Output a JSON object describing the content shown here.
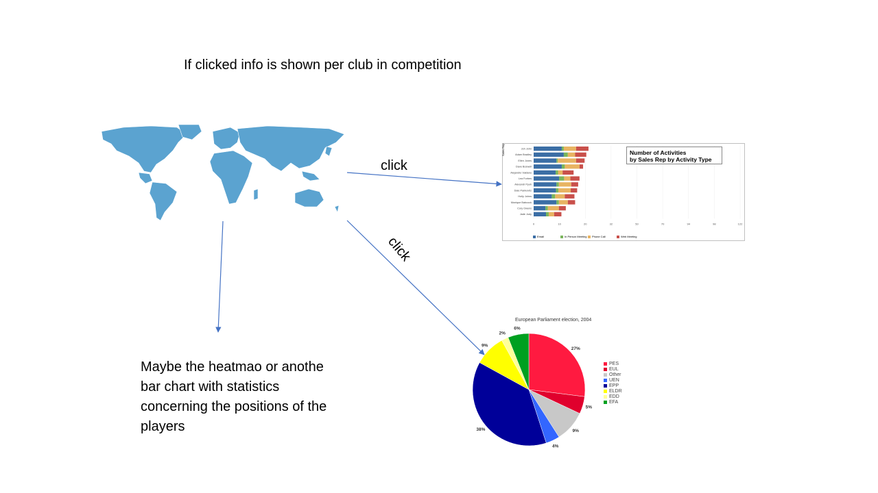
{
  "headline": "If clicked info is shown per club in competition",
  "note": "Maybe the heatmao or anothe bar chart with statistics concerning the positions of the players",
  "clicks": [
    "click",
    "click"
  ],
  "colors": {
    "map": "#5ba3d0",
    "arrow": "#4472c4"
  },
  "chart_data": [
    {
      "type": "bar",
      "stacked": true,
      "orientation": "horizontal",
      "title": "Number of Activities by Sales Rep by Activity Type",
      "title_lines": [
        "Number of Activities",
        "by Sales Rep by Activity Type"
      ],
      "ylabel": "Sales Rep",
      "categories": [
        "Joh John",
        "Adam Bradley",
        "Ellen Jones",
        "Dave Boswell",
        "Alejandro Valdano",
        "Lea Forbes",
        "Alexandr Pyuh",
        "Dale Pankovitz",
        "Holly Johns",
        "Monique Babcock",
        "Cory Owens",
        "Jade Judy"
      ],
      "xlim": [
        0,
        122
      ],
      "xticks": [
        "0",
        "10",
        "20",
        "32",
        "50",
        "70",
        "94",
        "98",
        "122"
      ],
      "legend": "bottom",
      "series": [
        {
          "name": "Email",
          "color": "#3b6ea5",
          "values": [
            16.6,
            17.8,
            13.5,
            16.6,
            13,
            15,
            13.5,
            13.2,
            10.7,
            13.5,
            7,
            7.3
          ]
        },
        {
          "name": "In Person Meeting",
          "color": "#7ab55c",
          "values": [
            1.2,
            2.4,
            0.8,
            1.8,
            1.4,
            3,
            1.4,
            1.4,
            2,
            1.4,
            1.4,
            1.6
          ]
        },
        {
          "name": "Phone Call",
          "color": "#e8b462",
          "values": [
            7.3,
            4.3,
            10.8,
            8.7,
            2.7,
            3.7,
            7.3,
            7.3,
            5.7,
            5.3,
            6.5,
            3.2
          ]
        },
        {
          "name": "Web Meeting",
          "color": "#c9504b",
          "values": [
            7.3,
            6.6,
            5,
            2.1,
            6.5,
            5.4,
            4.1,
            3.8,
            5.7,
            4.3,
            4.1,
            4.3
          ]
        }
      ]
    },
    {
      "type": "pie",
      "title": "European Parliament election, 2004",
      "legend": "right",
      "slices": [
        {
          "name": "PES",
          "value": 27,
          "label": "27%",
          "color": "#ff1a40"
        },
        {
          "name": "EUL",
          "value": 5,
          "label": "5%",
          "color": "#e0002d"
        },
        {
          "name": "Other",
          "value": 9,
          "label": "9%",
          "color": "#c8c8c8"
        },
        {
          "name": "UEN",
          "value": 4,
          "label": "4%",
          "color": "#3366ff"
        },
        {
          "name": "EPP",
          "value": 38,
          "label": "38%",
          "color": "#000099"
        },
        {
          "name": "ELDR",
          "value": 9,
          "label": "9%",
          "color": "#ffff00"
        },
        {
          "name": "EDD",
          "value": 2,
          "label": "2%",
          "color": "#ffff99"
        },
        {
          "name": "EFA",
          "value": 6,
          "label": "6%",
          "color": "#00a020"
        }
      ]
    }
  ]
}
